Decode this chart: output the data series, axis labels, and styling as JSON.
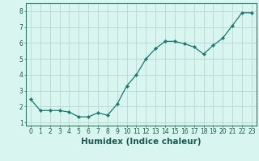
{
  "x": [
    0,
    1,
    2,
    3,
    4,
    5,
    6,
    7,
    8,
    9,
    10,
    11,
    12,
    13,
    14,
    15,
    16,
    17,
    18,
    19,
    20,
    21,
    22,
    23
  ],
  "y": [
    2.45,
    1.75,
    1.75,
    1.75,
    1.65,
    1.35,
    1.35,
    1.6,
    1.45,
    2.15,
    3.3,
    4.0,
    5.0,
    5.65,
    6.1,
    6.1,
    5.95,
    5.75,
    5.3,
    5.85,
    6.3,
    7.1,
    7.9,
    7.9
  ],
  "line_color": "#1a7a6e",
  "marker": "D",
  "marker_size": 2.2,
  "bg_color": "#d8f5f0",
  "grid_color": "#b8d8d2",
  "xlabel": "Humidex (Indice chaleur)",
  "xlim": [
    -0.5,
    23.5
  ],
  "ylim": [
    0.8,
    8.5
  ],
  "yticks": [
    1,
    2,
    3,
    4,
    5,
    6,
    7,
    8
  ],
  "xticks": [
    0,
    1,
    2,
    3,
    4,
    5,
    6,
    7,
    8,
    9,
    10,
    11,
    12,
    13,
    14,
    15,
    16,
    17,
    18,
    19,
    20,
    21,
    22,
    23
  ],
  "xtick_labels": [
    "0",
    "1",
    "2",
    "3",
    "4",
    "5",
    "6",
    "7",
    "8",
    "9",
    "10",
    "11",
    "12",
    "13",
    "14",
    "15",
    "16",
    "17",
    "18",
    "19",
    "20",
    "21",
    "22",
    "23"
  ],
  "tick_fontsize": 5.5,
  "xlabel_fontsize": 7.5,
  "label_color": "#1a5a50",
  "spine_color": "#2a7a6a",
  "lw": 0.9
}
